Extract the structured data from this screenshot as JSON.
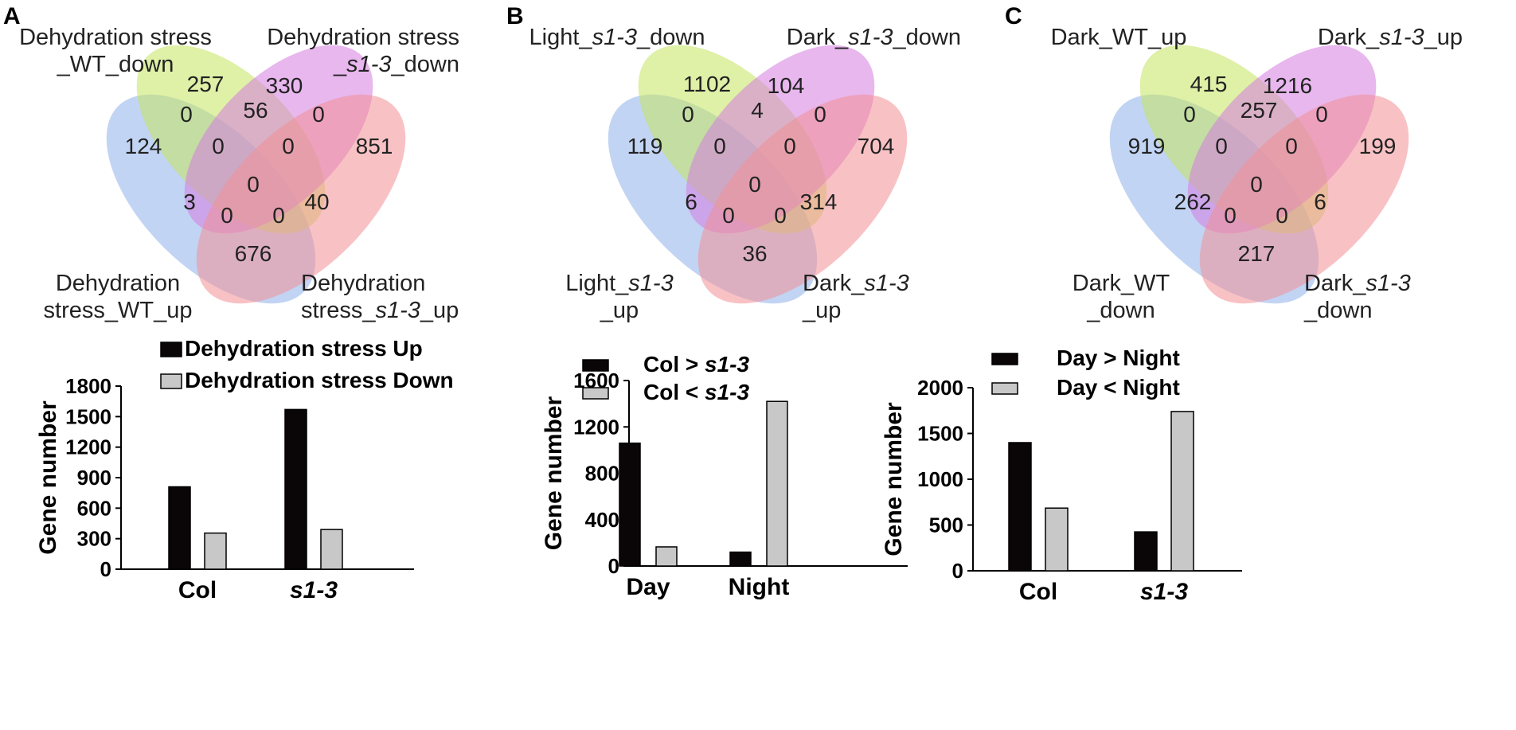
{
  "colors": {
    "blue": "#8fb1ea",
    "green": "#c4e35f",
    "magenta": "#d67ce0",
    "red": "#f28f95",
    "bar_dark": "#0a0507",
    "bar_light": "#c8c8c8",
    "axis": "#000000"
  },
  "venn": [
    {
      "panel": "A",
      "labels": {
        "top_left": [
          "Dehydration stress",
          "_WT_down"
        ],
        "top_right": [
          [
            {
              "t": "Dehydration stress"
            }
          ],
          [
            {
              "t": "_"
            },
            {
              "t": "s1-3",
              "i": true
            },
            {
              "t": "_down"
            }
          ]
        ],
        "bottom_left": [
          "Dehydration",
          "stress_WT_up"
        ],
        "bottom_right": [
          [
            {
              "t": "Dehydration"
            }
          ],
          [
            {
              "t": "stress_"
            },
            {
              "t": "s1-3",
              "i": true
            },
            {
              "t": "_up"
            }
          ]
        ]
      },
      "counts": {
        "green_only": "257",
        "magenta_only": "330",
        "blue_only": "124",
        "red_only": "851",
        "blue_green": "0",
        "green_magenta": "56",
        "magenta_red": "0",
        "blue_green_magenta": "0",
        "green_magenta_red": "0",
        "center": "0",
        "blue_magenta": "3",
        "green_red": "40",
        "blue_magenta_red": "0",
        "blue_green_red": "0",
        "blue_red": "676"
      }
    },
    {
      "panel": "B",
      "labels": {
        "top_left": [
          [
            {
              "t": "Light_"
            },
            {
              "t": "s1-3",
              "i": true
            },
            {
              "t": "_down"
            }
          ]
        ],
        "top_right": [
          [
            {
              "t": "Dark_"
            },
            {
              "t": "s1-3",
              "i": true
            },
            {
              "t": "_down"
            }
          ]
        ],
        "bottom_left": [
          [
            {
              "t": "Light_"
            },
            {
              "t": "s1-3",
              "i": true
            }
          ],
          [
            {
              "t": "_up"
            }
          ]
        ],
        "bottom_right": [
          [
            {
              "t": "Dark_"
            },
            {
              "t": "s1-3",
              "i": true
            }
          ],
          [
            {
              "t": "_up"
            }
          ]
        ]
      },
      "counts": {
        "green_only": "1102",
        "magenta_only": "104",
        "blue_only": "119",
        "red_only": "704",
        "blue_green": "0",
        "green_magenta": "4",
        "magenta_red": "0",
        "blue_green_magenta": "0",
        "green_magenta_red": "0",
        "center": "0",
        "blue_magenta": "6",
        "green_red": "314",
        "blue_magenta_red": "0",
        "blue_green_red": "0",
        "blue_red": "36"
      }
    },
    {
      "panel": "C",
      "labels": {
        "top_left": [
          "Dark_WT_up"
        ],
        "top_right": [
          [
            {
              "t": "Dark_"
            },
            {
              "t": "s1-3",
              "i": true
            },
            {
              "t": "_up"
            }
          ]
        ],
        "bottom_left": [
          "Dark_WT",
          "_down"
        ],
        "bottom_right": [
          [
            {
              "t": "Dark_"
            },
            {
              "t": "s1-3",
              "i": true
            }
          ],
          [
            {
              "t": "_down"
            }
          ]
        ]
      },
      "counts": {
        "green_only": "415",
        "magenta_only": "1216",
        "blue_only": "919",
        "red_only": "199",
        "blue_green": "0",
        "green_magenta": "257",
        "magenta_red": "0",
        "blue_green_magenta": "0",
        "green_magenta_red": "0",
        "center": "0",
        "blue_magenta": "262",
        "green_red": "6",
        "blue_magenta_red": "0",
        "blue_green_red": "0",
        "blue_red": "217"
      }
    }
  ],
  "chart_data": [
    {
      "type": "bar",
      "title": "",
      "xlabel": "",
      "ylabel": "Gene number",
      "ylim": [
        0,
        1800
      ],
      "yticks": [
        "0",
        "300",
        "600",
        "900",
        "1200",
        "1500",
        "1800"
      ],
      "categories": [
        [
          {
            "t": "Col"
          }
        ],
        [
          {
            "t": "s1-3",
            "i": true
          }
        ]
      ],
      "series": [
        {
          "name": [
            {
              "t": "Dehydration stress Up"
            }
          ],
          "values": [
            810,
            1570
          ]
        },
        {
          "name": [
            {
              "t": "Dehydration stress Down"
            }
          ],
          "values": [
            355,
            390
          ]
        }
      ],
      "legend": "top-right"
    },
    {
      "type": "bar",
      "title": "",
      "xlabel": "",
      "ylabel": "Gene number",
      "ylim": [
        0,
        1600
      ],
      "yticks": [
        "0",
        "400",
        "800",
        "1200",
        "1600"
      ],
      "categories": [
        [
          {
            "t": "Day"
          }
        ],
        [
          {
            "t": "Night"
          }
        ]
      ],
      "series": [
        {
          "name": [
            {
              "t": "Col > "
            },
            {
              "t": "s1-3",
              "i": true
            }
          ],
          "values": [
            1060,
            120
          ]
        },
        {
          "name": [
            {
              "t": "Col < "
            },
            {
              "t": "s1-3",
              "i": true
            }
          ],
          "values": [
            165,
            1420
          ]
        }
      ],
      "legend": "top"
    },
    {
      "type": "bar",
      "title": "",
      "xlabel": "",
      "ylabel": "Gene number",
      "ylim": [
        0,
        2000
      ],
      "yticks": [
        "0",
        "500",
        "1000",
        "1500",
        "2000"
      ],
      "categories": [
        [
          {
            "t": "Col"
          }
        ],
        [
          {
            "t": "s1-3",
            "i": true
          }
        ]
      ],
      "series": [
        {
          "name": [
            {
              "t": "Day > Night"
            }
          ],
          "values": [
            1400,
            425
          ]
        },
        {
          "name": [
            {
              "t": "Day < Night"
            }
          ],
          "values": [
            685,
            1740
          ]
        }
      ],
      "legend": "top"
    }
  ]
}
